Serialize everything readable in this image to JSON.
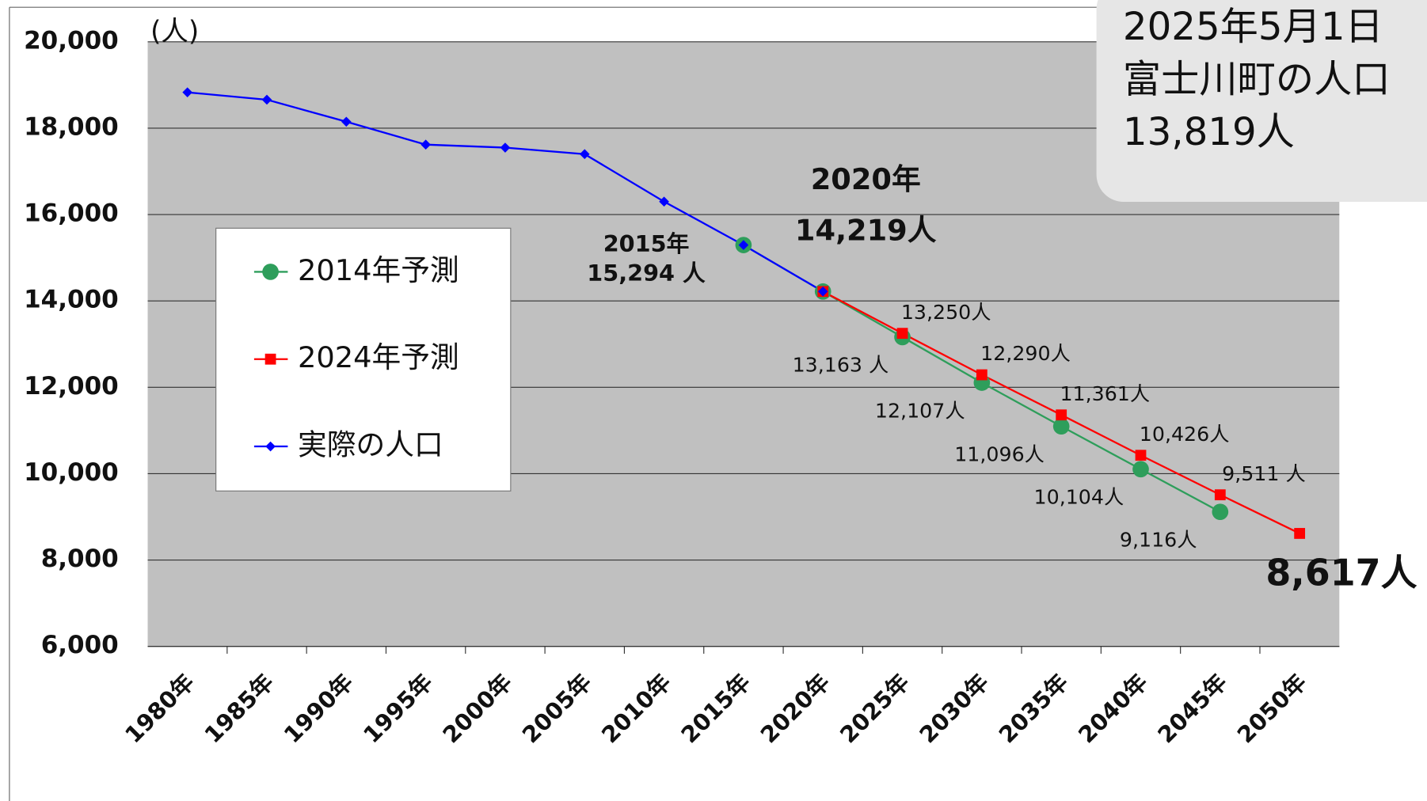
{
  "chart_data": {
    "type": "line",
    "y_unit": "(人)",
    "categories": [
      "1980年",
      "1985年",
      "1990年",
      "1995年",
      "2000年",
      "2005年",
      "2010年",
      "2015年",
      "2020年",
      "2025年",
      "2030年",
      "2035年",
      "2040年",
      "2045年",
      "2050年"
    ],
    "series": [
      {
        "name": "2014年予測",
        "color": "#2e9e5b",
        "marker": "circle",
        "values": [
          null,
          null,
          null,
          null,
          null,
          null,
          null,
          15294,
          14219,
          13163,
          12107,
          11096,
          10104,
          9116,
          null
        ],
        "value_labels": [
          null,
          null,
          null,
          null,
          null,
          null,
          null,
          null,
          null,
          "13,163 人",
          "12,107人",
          "11,096人",
          "10,104人",
          "9,116人",
          null
        ]
      },
      {
        "name": "2024年予測",
        "color": "#ff0000",
        "marker": "square",
        "values": [
          null,
          null,
          null,
          null,
          null,
          null,
          null,
          null,
          14219,
          13250,
          12290,
          11361,
          10426,
          9511,
          8617
        ],
        "value_labels": [
          null,
          null,
          null,
          null,
          null,
          null,
          null,
          null,
          null,
          "13,250人",
          "12,290人",
          "11,361人",
          "10,426人",
          "9,511 人",
          "8,617人"
        ]
      },
      {
        "name": "実際の人口",
        "color": "#0000ff",
        "marker": "diamond",
        "values": [
          18830,
          18660,
          18150,
          17620,
          17550,
          17400,
          16300,
          15294,
          14219,
          null,
          null,
          null,
          null,
          null,
          null
        ]
      }
    ],
    "annotations": [
      {
        "lines": [
          "2015年",
          "15,294 人"
        ],
        "at": 7
      },
      {
        "lines": [
          "2020年",
          "14,219人"
        ],
        "at": 8
      }
    ],
    "ylim": [
      6000,
      20000
    ],
    "yticks": [
      {
        "value": 6000,
        "label": "6,000"
      },
      {
        "value": 8000,
        "label": "8,000"
      },
      {
        "value": 10000,
        "label": "10,000"
      },
      {
        "value": 12000,
        "label": "12,000"
      },
      {
        "value": 14000,
        "label": "14,000"
      },
      {
        "value": 16000,
        "label": "16,000"
      },
      {
        "value": 18000,
        "label": "18,000"
      },
      {
        "value": 20000,
        "label": "20,000"
      }
    ],
    "grid": true
  },
  "info_box": {
    "lines": [
      "2025年5月1日",
      "富士川町の人口",
      "13,819人"
    ]
  }
}
